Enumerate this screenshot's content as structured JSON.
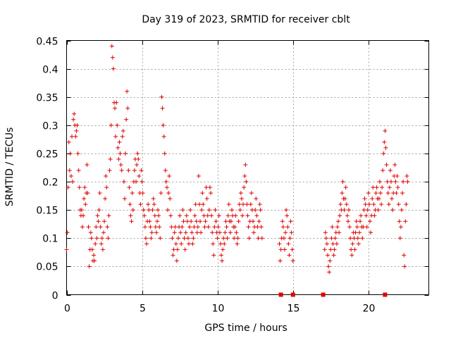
{
  "chart_data": {
    "type": "scatter",
    "title": "Day 319 of 2023, SRMTID for receiver cblt",
    "xlabel": "GPS time / hours",
    "ylabel": "SRMTID / TECUs",
    "xlim": [
      0,
      24
    ],
    "ylim": [
      0,
      0.45
    ],
    "x_ticks": [
      0,
      5,
      10,
      15,
      20
    ],
    "x_tick_labels": [
      "0",
      "5",
      "10",
      "15",
      "20"
    ],
    "y_ticks": [
      0,
      0.05,
      0.1,
      0.15,
      0.2,
      0.25,
      0.3,
      0.35,
      0.4,
      0.45
    ],
    "y_tick_labels": [
      "0",
      "0.05",
      "0.1",
      "0.15",
      "0.2",
      "0.25",
      "0.3",
      "0.35",
      "0.4",
      "0.45"
    ],
    "grid": true,
    "marker": "plus",
    "series_color": "#e00000",
    "points": [
      [
        0.0,
        0.08
      ],
      [
        0.05,
        0.11
      ],
      [
        0.1,
        0.19
      ],
      [
        0.15,
        0.27
      ],
      [
        0.2,
        0.22
      ],
      [
        0.25,
        0.25
      ],
      [
        0.3,
        0.21
      ],
      [
        0.35,
        0.28
      ],
      [
        0.4,
        0.2
      ],
      [
        0.45,
        0.31
      ],
      [
        0.5,
        0.32
      ],
      [
        0.55,
        0.3
      ],
      [
        0.6,
        0.28
      ],
      [
        0.65,
        0.29
      ],
      [
        0.7,
        0.3
      ],
      [
        0.75,
        0.25
      ],
      [
        0.8,
        0.22
      ],
      [
        0.85,
        0.19
      ],
      [
        0.9,
        0.15
      ],
      [
        0.95,
        0.14
      ],
      [
        1.0,
        0.15
      ],
      [
        1.05,
        0.12
      ],
      [
        1.1,
        0.14
      ],
      [
        1.15,
        0.17
      ],
      [
        1.2,
        0.19
      ],
      [
        1.25,
        0.16
      ],
      [
        1.3,
        0.18
      ],
      [
        1.35,
        0.23
      ],
      [
        1.4,
        0.18
      ],
      [
        1.45,
        0.12
      ],
      [
        1.5,
        0.05
      ],
      [
        1.55,
        0.08
      ],
      [
        1.6,
        0.11
      ],
      [
        1.65,
        0.1
      ],
      [
        1.7,
        0.08
      ],
      [
        1.75,
        0.06
      ],
      [
        1.8,
        0.07
      ],
      [
        1.85,
        0.06
      ],
      [
        1.9,
        0.09
      ],
      [
        1.95,
        0.12
      ],
      [
        2.0,
        0.1
      ],
      [
        2.05,
        0.14
      ],
      [
        2.1,
        0.13
      ],
      [
        2.15,
        0.15
      ],
      [
        2.2,
        0.18
      ],
      [
        2.25,
        0.12
      ],
      [
        2.3,
        0.09
      ],
      [
        2.35,
        0.1
      ],
      [
        2.4,
        0.08
      ],
      [
        2.45,
        0.11
      ],
      [
        2.5,
        0.13
      ],
      [
        2.55,
        0.17
      ],
      [
        2.6,
        0.21
      ],
      [
        2.65,
        0.19
      ],
      [
        2.7,
        0.12
      ],
      [
        2.75,
        0.1
      ],
      [
        2.8,
        0.14
      ],
      [
        2.85,
        0.22
      ],
      [
        2.9,
        0.24
      ],
      [
        2.95,
        0.3
      ],
      [
        3.0,
        0.44
      ],
      [
        3.05,
        0.42
      ],
      [
        3.1,
        0.4
      ],
      [
        3.15,
        0.34
      ],
      [
        3.2,
        0.33
      ],
      [
        3.25,
        0.28
      ],
      [
        3.3,
        0.34
      ],
      [
        3.35,
        0.3
      ],
      [
        3.4,
        0.26
      ],
      [
        3.45,
        0.24
      ],
      [
        3.5,
        0.27
      ],
      [
        3.55,
        0.25
      ],
      [
        3.6,
        0.23
      ],
      [
        3.65,
        0.22
      ],
      [
        3.7,
        0.28
      ],
      [
        3.75,
        0.29
      ],
      [
        3.8,
        0.2
      ],
      [
        3.85,
        0.17
      ],
      [
        3.9,
        0.25
      ],
      [
        3.95,
        0.31
      ],
      [
        4.0,
        0.36
      ],
      [
        4.05,
        0.33
      ],
      [
        4.1,
        0.22
      ],
      [
        4.15,
        0.19
      ],
      [
        4.2,
        0.16
      ],
      [
        4.25,
        0.14
      ],
      [
        4.3,
        0.13
      ],
      [
        4.35,
        0.18
      ],
      [
        4.4,
        0.15
      ],
      [
        4.45,
        0.2
      ],
      [
        4.5,
        0.22
      ],
      [
        4.55,
        0.24
      ],
      [
        4.6,
        0.2
      ],
      [
        4.65,
        0.23
      ],
      [
        4.7,
        0.25
      ],
      [
        4.75,
        0.24
      ],
      [
        4.8,
        0.21
      ],
      [
        4.85,
        0.18
      ],
      [
        4.9,
        0.16
      ],
      [
        4.95,
        0.22
      ],
      [
        5.0,
        0.2
      ],
      [
        5.05,
        0.18
      ],
      [
        5.1,
        0.15
      ],
      [
        5.15,
        0.14
      ],
      [
        5.2,
        0.12
      ],
      [
        5.25,
        0.1
      ],
      [
        5.3,
        0.09
      ],
      [
        5.35,
        0.13
      ],
      [
        5.4,
        0.16
      ],
      [
        5.45,
        0.15
      ],
      [
        5.5,
        0.13
      ],
      [
        5.55,
        0.12
      ],
      [
        5.6,
        0.1
      ],
      [
        5.65,
        0.11
      ],
      [
        5.7,
        0.15
      ],
      [
        5.75,
        0.17
      ],
      [
        5.8,
        0.16
      ],
      [
        5.85,
        0.14
      ],
      [
        5.9,
        0.12
      ],
      [
        5.95,
        0.11
      ],
      [
        6.0,
        0.13
      ],
      [
        6.05,
        0.15
      ],
      [
        6.1,
        0.14
      ],
      [
        6.15,
        0.12
      ],
      [
        6.2,
        0.1
      ],
      [
        6.25,
        0.18
      ],
      [
        6.3,
        0.35
      ],
      [
        6.35,
        0.33
      ],
      [
        6.4,
        0.3
      ],
      [
        6.45,
        0.28
      ],
      [
        6.5,
        0.25
      ],
      [
        6.55,
        0.22
      ],
      [
        6.6,
        0.2
      ],
      [
        6.65,
        0.19
      ],
      [
        6.7,
        0.15
      ],
      [
        6.75,
        0.18
      ],
      [
        6.8,
        0.21
      ],
      [
        6.85,
        0.17
      ],
      [
        6.9,
        0.14
      ],
      [
        6.95,
        0.12
      ],
      [
        7.0,
        0.1
      ],
      [
        7.05,
        0.07
      ],
      [
        7.1,
        0.08
      ],
      [
        7.15,
        0.11
      ],
      [
        7.2,
        0.12
      ],
      [
        7.25,
        0.09
      ],
      [
        7.3,
        0.06
      ],
      [
        7.35,
        0.08
      ],
      [
        7.4,
        0.1
      ],
      [
        7.45,
        0.12
      ],
      [
        7.5,
        0.14
      ],
      [
        7.55,
        0.11
      ],
      [
        7.6,
        0.09
      ],
      [
        7.65,
        0.12
      ],
      [
        7.7,
        0.15
      ],
      [
        7.75,
        0.13
      ],
      [
        7.8,
        0.1
      ],
      [
        7.85,
        0.08
      ],
      [
        7.9,
        0.11
      ],
      [
        7.95,
        0.14
      ],
      [
        8.0,
        0.13
      ],
      [
        8.05,
        0.1
      ],
      [
        8.1,
        0.09
      ],
      [
        8.15,
        0.12
      ],
      [
        8.2,
        0.15
      ],
      [
        8.25,
        0.13
      ],
      [
        8.3,
        0.11
      ],
      [
        8.35,
        0.09
      ],
      [
        8.4,
        0.1
      ],
      [
        8.45,
        0.12
      ],
      [
        8.5,
        0.14
      ],
      [
        8.55,
        0.16
      ],
      [
        8.6,
        0.13
      ],
      [
        8.65,
        0.11
      ],
      [
        8.7,
        0.12
      ],
      [
        8.75,
        0.21
      ],
      [
        8.8,
        0.16
      ],
      [
        8.85,
        0.13
      ],
      [
        8.9,
        0.11
      ],
      [
        8.95,
        0.15
      ],
      [
        9.0,
        0.18
      ],
      [
        9.05,
        0.16
      ],
      [
        9.1,
        0.14
      ],
      [
        9.15,
        0.12
      ],
      [
        9.2,
        0.13
      ],
      [
        9.25,
        0.19
      ],
      [
        9.3,
        0.17
      ],
      [
        9.35,
        0.14
      ],
      [
        9.4,
        0.12
      ],
      [
        9.45,
        0.15
      ],
      [
        9.5,
        0.19
      ],
      [
        9.55,
        0.18
      ],
      [
        9.6,
        0.14
      ],
      [
        9.65,
        0.11
      ],
      [
        9.7,
        0.09
      ],
      [
        9.75,
        0.07
      ],
      [
        9.8,
        0.12
      ],
      [
        9.85,
        0.15
      ],
      [
        9.9,
        0.13
      ],
      [
        9.95,
        0.11
      ],
      [
        10.0,
        0.1
      ],
      [
        10.05,
        0.12
      ],
      [
        10.1,
        0.14
      ],
      [
        10.15,
        0.11
      ],
      [
        10.2,
        0.09
      ],
      [
        10.25,
        0.07
      ],
      [
        10.3,
        0.06
      ],
      [
        10.35,
        0.08
      ],
      [
        10.4,
        0.1
      ],
      [
        10.45,
        0.09
      ],
      [
        10.5,
        0.11
      ],
      [
        10.55,
        0.13
      ],
      [
        10.6,
        0.12
      ],
      [
        10.65,
        0.1
      ],
      [
        10.7,
        0.14
      ],
      [
        10.75,
        0.16
      ],
      [
        10.8,
        0.13
      ],
      [
        10.85,
        0.11
      ],
      [
        10.9,
        0.13
      ],
      [
        10.95,
        0.15
      ],
      [
        11.0,
        0.14
      ],
      [
        11.05,
        0.12
      ],
      [
        11.1,
        0.1
      ],
      [
        11.15,
        0.12
      ],
      [
        11.2,
        0.14
      ],
      [
        11.25,
        0.11
      ],
      [
        11.3,
        0.09
      ],
      [
        11.35,
        0.1
      ],
      [
        11.4,
        0.13
      ],
      [
        11.45,
        0.16
      ],
      [
        11.5,
        0.15
      ],
      [
        11.55,
        0.18
      ],
      [
        11.6,
        0.17
      ],
      [
        11.65,
        0.14
      ],
      [
        11.7,
        0.16
      ],
      [
        11.75,
        0.19
      ],
      [
        11.8,
        0.21
      ],
      [
        11.85,
        0.23
      ],
      [
        11.9,
        0.2
      ],
      [
        11.95,
        0.16
      ],
      [
        12.0,
        0.14
      ],
      [
        12.05,
        0.12
      ],
      [
        12.1,
        0.1
      ],
      [
        12.15,
        0.13
      ],
      [
        12.2,
        0.16
      ],
      [
        12.25,
        0.18
      ],
      [
        12.3,
        0.15
      ],
      [
        12.35,
        0.13
      ],
      [
        12.4,
        0.11
      ],
      [
        12.45,
        0.12
      ],
      [
        12.5,
        0.15
      ],
      [
        12.55,
        0.17
      ],
      [
        12.6,
        0.14
      ],
      [
        12.65,
        0.12
      ],
      [
        12.7,
        0.1
      ],
      [
        12.75,
        0.13
      ],
      [
        12.8,
        0.16
      ],
      [
        12.85,
        0.15
      ],
      [
        12.9,
        0.12
      ],
      [
        12.95,
        0.1
      ],
      [
        14.1,
        0.09
      ],
      [
        14.15,
        0.06
      ],
      [
        14.2,
        0.08
      ],
      [
        14.25,
        0.1
      ],
      [
        14.3,
        0.13
      ],
      [
        14.35,
        0.12
      ],
      [
        14.4,
        0.1
      ],
      [
        14.45,
        0.08
      ],
      [
        14.5,
        0.11
      ],
      [
        14.55,
        0.15
      ],
      [
        14.6,
        0.14
      ],
      [
        14.65,
        0.12
      ],
      [
        14.7,
        0.09
      ],
      [
        14.75,
        0.07
      ],
      [
        14.8,
        0.1
      ],
      [
        14.85,
        0.13
      ],
      [
        14.9,
        0.11
      ],
      [
        14.95,
        0.08
      ],
      [
        15.0,
        0.06
      ],
      [
        17.1,
        0.08
      ],
      [
        17.15,
        0.11
      ],
      [
        17.2,
        0.1
      ],
      [
        17.25,
        0.09
      ],
      [
        17.3,
        0.07
      ],
      [
        17.35,
        0.05
      ],
      [
        17.4,
        0.04
      ],
      [
        17.45,
        0.06
      ],
      [
        17.5,
        0.08
      ],
      [
        17.55,
        0.1
      ],
      [
        17.6,
        0.12
      ],
      [
        17.65,
        0.09
      ],
      [
        17.7,
        0.07
      ],
      [
        17.75,
        0.08
      ],
      [
        17.8,
        0.1
      ],
      [
        17.85,
        0.11
      ],
      [
        17.9,
        0.09
      ],
      [
        17.95,
        0.12
      ],
      [
        18.0,
        0.13
      ],
      [
        18.05,
        0.11
      ],
      [
        18.1,
        0.14
      ],
      [
        18.15,
        0.16
      ],
      [
        18.2,
        0.15
      ],
      [
        18.25,
        0.18
      ],
      [
        18.3,
        0.2
      ],
      [
        18.35,
        0.17
      ],
      [
        18.4,
        0.15
      ],
      [
        18.45,
        0.17
      ],
      [
        18.5,
        0.19
      ],
      [
        18.55,
        0.16
      ],
      [
        18.6,
        0.14
      ],
      [
        18.65,
        0.13
      ],
      [
        18.7,
        0.15
      ],
      [
        18.75,
        0.12
      ],
      [
        18.8,
        0.1
      ],
      [
        18.85,
        0.08
      ],
      [
        18.9,
        0.07
      ],
      [
        18.95,
        0.09
      ],
      [
        19.0,
        0.11
      ],
      [
        19.05,
        0.1
      ],
      [
        19.1,
        0.08
      ],
      [
        19.15,
        0.11
      ],
      [
        19.2,
        0.13
      ],
      [
        19.25,
        0.12
      ],
      [
        19.3,
        0.1
      ],
      [
        19.35,
        0.09
      ],
      [
        19.4,
        0.11
      ],
      [
        19.45,
        0.13
      ],
      [
        19.5,
        0.14
      ],
      [
        19.55,
        0.12
      ],
      [
        19.6,
        0.1
      ],
      [
        19.65,
        0.12
      ],
      [
        19.7,
        0.15
      ],
      [
        19.75,
        0.17
      ],
      [
        19.8,
        0.16
      ],
      [
        19.85,
        0.14
      ],
      [
        19.9,
        0.12
      ],
      [
        19.95,
        0.15
      ],
      [
        20.0,
        0.18
      ],
      [
        20.05,
        0.16
      ],
      [
        20.1,
        0.13
      ],
      [
        20.15,
        0.11
      ],
      [
        20.2,
        0.14
      ],
      [
        20.25,
        0.17
      ],
      [
        20.3,
        0.19
      ],
      [
        20.35,
        0.16
      ],
      [
        20.4,
        0.14
      ],
      [
        20.45,
        0.15
      ],
      [
        20.5,
        0.18
      ],
      [
        20.55,
        0.19
      ],
      [
        20.6,
        0.17
      ],
      [
        20.65,
        0.15
      ],
      [
        20.7,
        0.17
      ],
      [
        20.75,
        0.2
      ],
      [
        20.8,
        0.18
      ],
      [
        20.85,
        0.16
      ],
      [
        20.9,
        0.19
      ],
      [
        20.95,
        0.22
      ],
      [
        21.0,
        0.25
      ],
      [
        21.05,
        0.27
      ],
      [
        21.1,
        0.29
      ],
      [
        21.15,
        0.26
      ],
      [
        21.2,
        0.23
      ],
      [
        21.25,
        0.2
      ],
      [
        21.3,
        0.18
      ],
      [
        21.35,
        0.16
      ],
      [
        21.4,
        0.19
      ],
      [
        21.45,
        0.22
      ],
      [
        21.5,
        0.2
      ],
      [
        21.55,
        0.17
      ],
      [
        21.6,
        0.15
      ],
      [
        21.65,
        0.18
      ],
      [
        21.7,
        0.21
      ],
      [
        21.75,
        0.23
      ],
      [
        21.8,
        0.2
      ],
      [
        21.85,
        0.18
      ],
      [
        21.9,
        0.21
      ],
      [
        21.95,
        0.19
      ],
      [
        22.0,
        0.16
      ],
      [
        22.05,
        0.13
      ],
      [
        22.1,
        0.1
      ],
      [
        22.15,
        0.12
      ],
      [
        22.2,
        0.15
      ],
      [
        22.25,
        0.18
      ],
      [
        22.3,
        0.2
      ],
      [
        22.35,
        0.07
      ],
      [
        22.4,
        0.05
      ],
      [
        22.45,
        0.13
      ],
      [
        22.5,
        0.16
      ],
      [
        22.55,
        0.21
      ],
      [
        22.6,
        0.2
      ]
    ],
    "zero_points": [
      14.2,
      15.0,
      17.0,
      21.1
    ]
  }
}
